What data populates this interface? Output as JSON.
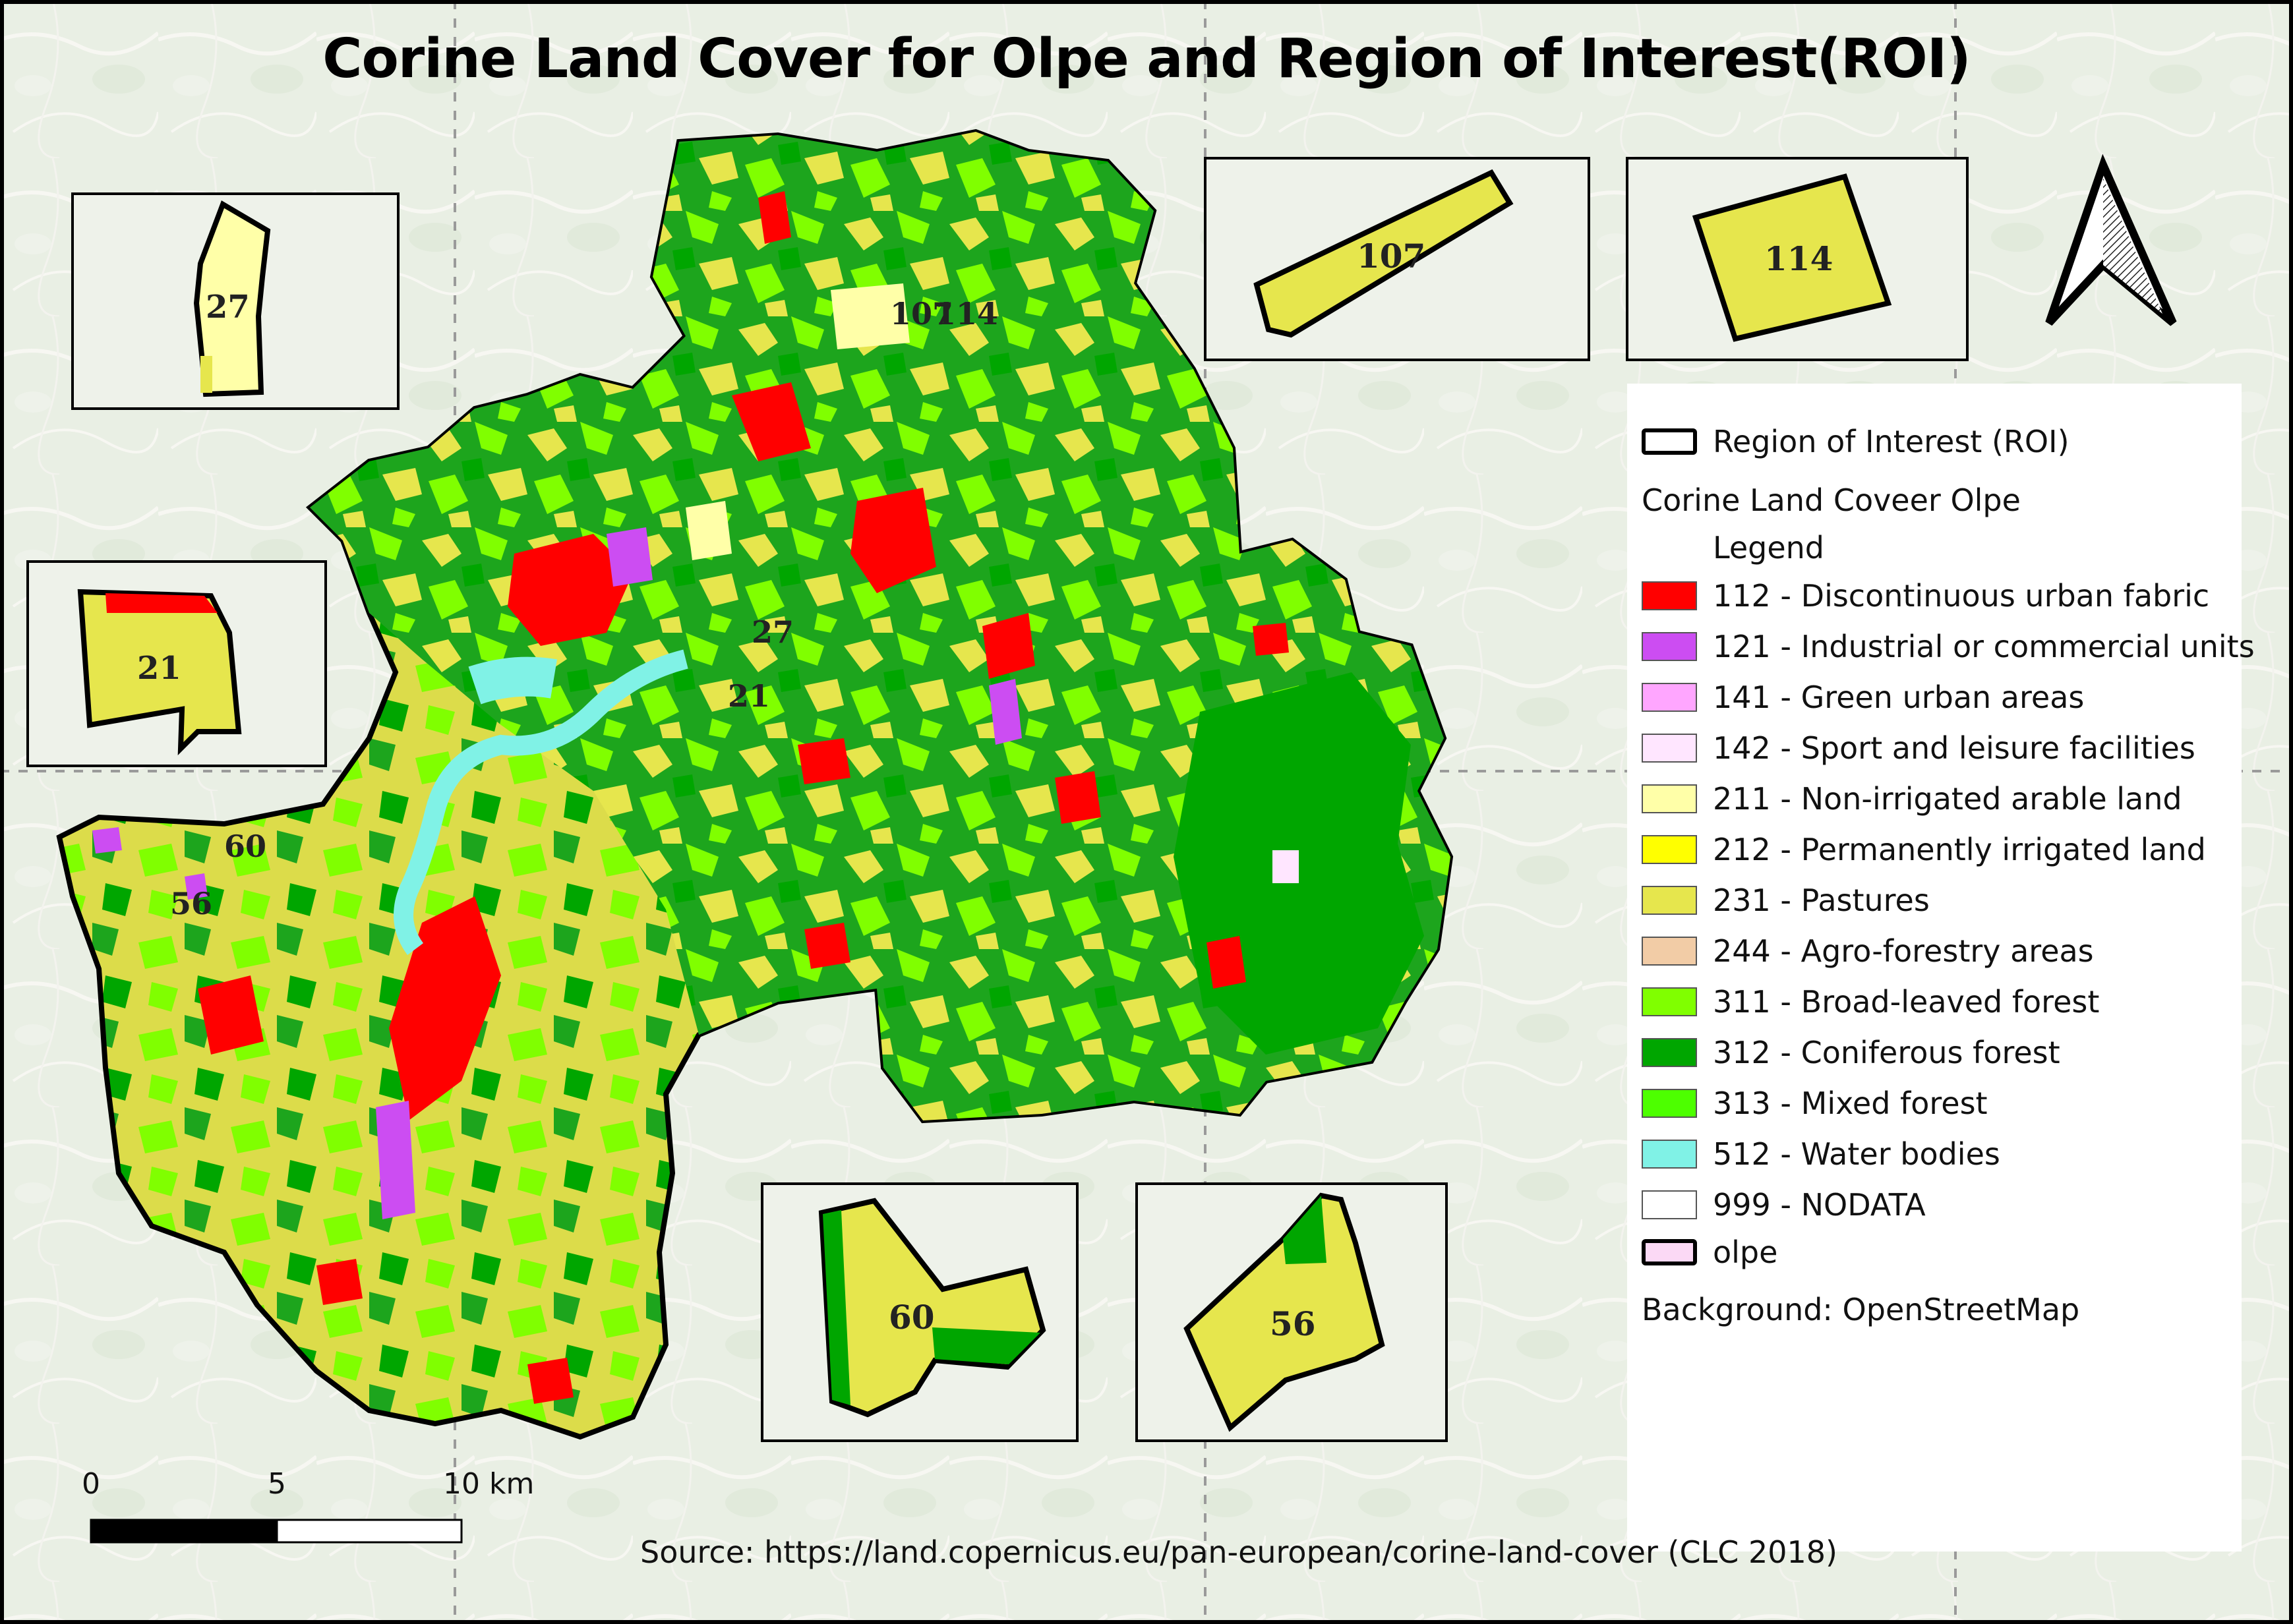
{
  "title": "Corine Land Cover for Olpe and Region of Interest(ROI)",
  "map_labels": [
    "107",
    "114",
    "27",
    "21",
    "60",
    "56"
  ],
  "insets": [
    {
      "id": "27",
      "label": "27"
    },
    {
      "id": "21",
      "label": "21"
    },
    {
      "id": "107",
      "label": "107"
    },
    {
      "id": "114",
      "label": "114"
    },
    {
      "id": "60",
      "label": "60"
    },
    {
      "id": "56",
      "label": "56"
    }
  ],
  "north_arrow": "north-arrow-icon",
  "legend": {
    "roi_label": "Region of Interest (ROI)",
    "group_title": "Corine Land Coveer Olpe",
    "group_subtitle": "Legend",
    "classes": [
      {
        "label": "112 - Discontinuous urban fabric",
        "color": "#ff0000"
      },
      {
        "label": "121 - Industrial or commercial units",
        "color": "#cc4df2"
      },
      {
        "label": "141 - Green urban areas",
        "color": "#ffa6ff"
      },
      {
        "label": "142 - Sport and leisure facilities",
        "color": "#ffe6ff"
      },
      {
        "label": "211 - Non-irrigated arable land",
        "color": "#ffffa8"
      },
      {
        "label": "212 - Permanently irrigated land",
        "color": "#ffff00"
      },
      {
        "label": "231 - Pastures",
        "color": "#e6e64d"
      },
      {
        "label": "244 - Agro-forestry areas",
        "color": "#f2cca6"
      },
      {
        "label": "311 - Broad-leaved forest",
        "color": "#80ff00"
      },
      {
        "label": "312 - Coniferous forest",
        "color": "#00a600"
      },
      {
        "label": "313 - Mixed forest",
        "color": "#4dff00"
      },
      {
        "label": "512 - Water bodies",
        "color": "#80f2e6"
      },
      {
        "label": "999 - NODATA",
        "color": "#ffffff"
      }
    ],
    "olpe_label": "olpe",
    "olpe_color": "#fbd9f5",
    "background_note": "Background: OpenStreetMap"
  },
  "scale_bar": {
    "labels": [
      "0",
      "5",
      "10 km"
    ]
  },
  "source": "Source: https://land.copernicus.eu/pan-european/corine-land-cover (CLC 2018)"
}
